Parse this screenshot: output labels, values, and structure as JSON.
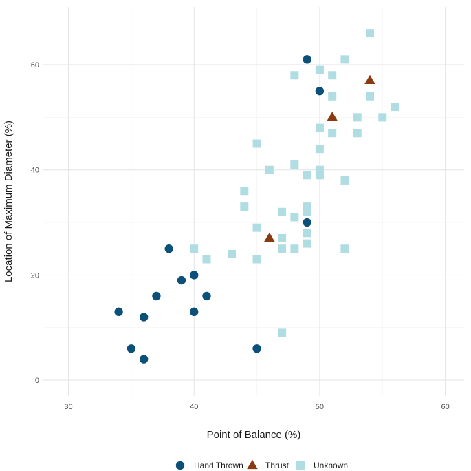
{
  "chart_data": {
    "type": "scatter",
    "title": "",
    "xlabel": "Point of Balance (%)",
    "ylabel": "Location of Maximum Diameter (%)",
    "xlim": [
      28,
      61.5
    ],
    "ylim": [
      -3,
      71
    ],
    "xticks": [
      30,
      40,
      50,
      60
    ],
    "yticks": [
      0,
      20,
      40,
      60
    ],
    "grid": true,
    "legend_position": "bottom",
    "series": [
      {
        "name": "Hand Thrown",
        "shape": "circle",
        "color": "#0b5078",
        "points": [
          [
            34,
            13
          ],
          [
            35,
            6
          ],
          [
            36,
            12
          ],
          [
            36,
            4
          ],
          [
            37,
            16
          ],
          [
            38,
            25
          ],
          [
            39,
            19
          ],
          [
            40,
            20
          ],
          [
            40,
            13
          ],
          [
            41,
            16
          ],
          [
            45,
            6
          ],
          [
            49,
            61
          ],
          [
            49,
            30
          ],
          [
            50,
            55
          ]
        ]
      },
      {
        "name": "Thrust",
        "shape": "triangle",
        "color": "#8b3a0f",
        "points": [
          [
            46,
            27
          ],
          [
            51,
            50
          ],
          [
            54,
            57
          ]
        ]
      },
      {
        "name": "Unknown",
        "shape": "square",
        "color": "#b0dde1",
        "points": [
          [
            40,
            25
          ],
          [
            41,
            23
          ],
          [
            43,
            24
          ],
          [
            44,
            36
          ],
          [
            44,
            33
          ],
          [
            45,
            45
          ],
          [
            45,
            29
          ],
          [
            45,
            23
          ],
          [
            46,
            40
          ],
          [
            47,
            32
          ],
          [
            47,
            27
          ],
          [
            47,
            25
          ],
          [
            47,
            9
          ],
          [
            48,
            58
          ],
          [
            48,
            41
          ],
          [
            48,
            31
          ],
          [
            48,
            25
          ],
          [
            49,
            39
          ],
          [
            49,
            33
          ],
          [
            49,
            32
          ],
          [
            49,
            28
          ],
          [
            49,
            26
          ],
          [
            50,
            59
          ],
          [
            50,
            48
          ],
          [
            50,
            44
          ],
          [
            50,
            40
          ],
          [
            50,
            39
          ],
          [
            51,
            58
          ],
          [
            51,
            54
          ],
          [
            51,
            47
          ],
          [
            52,
            61
          ],
          [
            52,
            38
          ],
          [
            52,
            25
          ],
          [
            53,
            50
          ],
          [
            53,
            47
          ],
          [
            54,
            66
          ],
          [
            54,
            54
          ],
          [
            55,
            50
          ],
          [
            56,
            52
          ]
        ]
      }
    ]
  }
}
